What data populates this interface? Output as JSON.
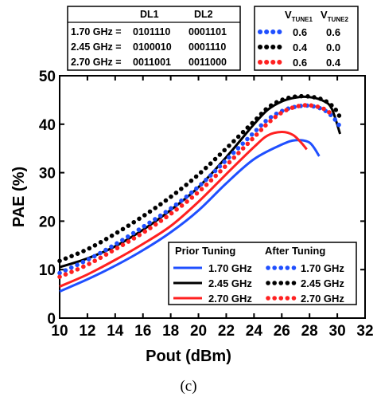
{
  "chart_data": {
    "type": "line",
    "xlabel": "Pout (dBm)",
    "ylabel": "PAE (%)",
    "xlim": [
      10,
      32
    ],
    "ylim": [
      0,
      50
    ],
    "xticks": [
      "10",
      "12",
      "14",
      "16",
      "18",
      "20",
      "22",
      "24",
      "26",
      "28",
      "30",
      "32"
    ],
    "yticks": [
      "0",
      "10",
      "20",
      "30",
      "40",
      "50"
    ],
    "panel_label": "(c)",
    "settings_table": {
      "headers": [
        "",
        "DL1",
        "DL2"
      ],
      "rows": [
        [
          "1.70 GHz =",
          "0101110",
          "0001101"
        ],
        [
          "2.45 GHz =",
          "0100010",
          "0001110"
        ],
        [
          "2.70 GHz =",
          "0011001",
          "0011000"
        ]
      ]
    },
    "tune_table": {
      "header1": "V",
      "header1_sub": "TUNE1",
      "header2": "V",
      "header2_sub": "TUNE2",
      "rows": [
        {
          "color": "#1f4fff",
          "v1": "0.6",
          "v2": "0.6"
        },
        {
          "color": "#000000",
          "v1": "0.4",
          "v2": "0.0"
        },
        {
          "color": "#ff2020",
          "v1": "0.6",
          "v2": "0.4"
        }
      ]
    },
    "legend": {
      "header_prior": "Prior Tuning",
      "header_after": "After Tuning",
      "entries": [
        {
          "label_prior": "1.70 GHz",
          "label_after": "1.70 GHz",
          "color": "#1f4fff"
        },
        {
          "label_prior": "2.45 GHz",
          "label_after": "2.45 GHz",
          "color": "#000000"
        },
        {
          "label_prior": "2.70 GHz",
          "label_after": "2.70 GHz",
          "color": "#ff2020"
        }
      ]
    },
    "series": [
      {
        "style": "solid",
        "color": "#1f4fff",
        "x": [
          10,
          12,
          14,
          16,
          18,
          20,
          22,
          24,
          26,
          27,
          28,
          28.7
        ],
        "y": [
          5.5,
          8.0,
          10.8,
          14.0,
          17.7,
          22.2,
          27.8,
          32.8,
          35.8,
          36.7,
          36.2,
          33.4
        ]
      },
      {
        "style": "solid",
        "color": "#000000",
        "x": [
          10,
          12,
          14,
          16,
          18,
          20,
          22,
          24,
          25,
          26,
          27,
          28,
          29,
          29.6,
          30.2
        ],
        "y": [
          10.5,
          12.3,
          14.8,
          18.2,
          22.3,
          27.0,
          33.2,
          40.0,
          43.0,
          44.7,
          45.5,
          45.6,
          44.8,
          43.2,
          38.0
        ]
      },
      {
        "style": "solid",
        "color": "#ff2020",
        "x": [
          10,
          12,
          14,
          16,
          18,
          20,
          22,
          24,
          25,
          26,
          26.8,
          27.4,
          27.8
        ],
        "y": [
          6.5,
          9.0,
          12.0,
          15.3,
          19.0,
          24.0,
          29.7,
          35.3,
          37.7,
          38.4,
          37.8,
          36.2,
          34.8
        ]
      },
      {
        "style": "dotted",
        "color": "#1f4fff",
        "x": [
          10,
          12,
          14,
          16,
          18,
          20,
          22,
          24,
          25,
          26,
          27,
          28,
          29,
          29.7,
          30.2
        ],
        "y": [
          9.3,
          12.0,
          15.2,
          18.8,
          22.6,
          27.1,
          32.6,
          38.3,
          41.0,
          42.7,
          43.6,
          43.8,
          43.0,
          41.4,
          39.5
        ]
      },
      {
        "style": "dotted",
        "color": "#000000",
        "x": [
          10,
          12,
          14,
          16,
          18,
          20,
          22,
          24,
          25,
          26,
          27,
          28,
          29,
          29.8,
          30.3
        ],
        "y": [
          11.8,
          14.2,
          17.4,
          21.0,
          25.0,
          29.6,
          35.0,
          40.6,
          43.4,
          45.0,
          45.7,
          45.7,
          45.0,
          43.3,
          40.8
        ]
      },
      {
        "style": "dotted",
        "color": "#ff2020",
        "x": [
          10,
          12,
          14,
          16,
          18,
          20,
          22,
          24,
          25,
          26,
          27,
          28,
          29,
          29.7
        ],
        "y": [
          8.5,
          11.0,
          14.2,
          17.6,
          21.5,
          26.0,
          31.5,
          37.3,
          40.2,
          42.4,
          43.6,
          43.9,
          43.2,
          41.8
        ]
      }
    ]
  }
}
